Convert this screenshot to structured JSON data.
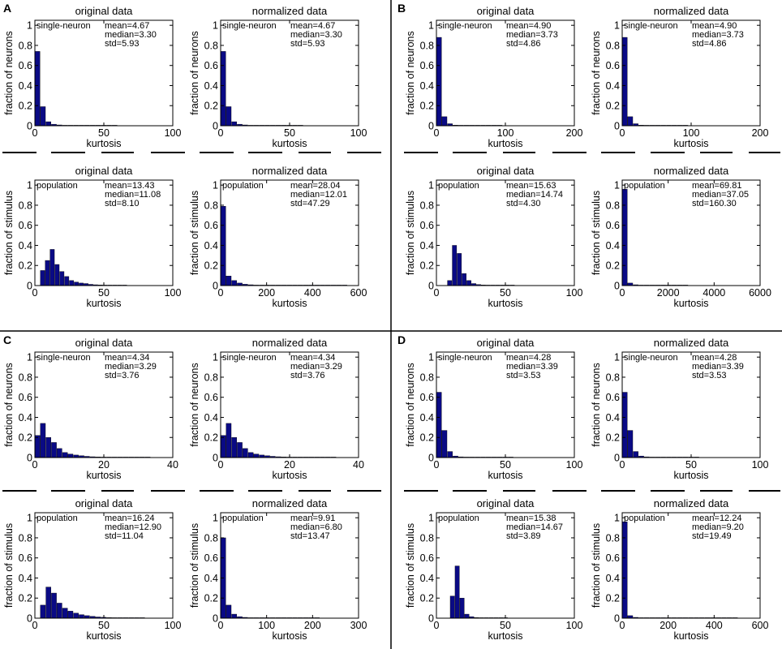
{
  "colors": {
    "bar": "#0a0a85",
    "axis": "#000000",
    "background": "#ffffff"
  },
  "panels": [
    {
      "letter": "A"
    },
    {
      "letter": "B"
    },
    {
      "letter": "C"
    },
    {
      "letter": "D"
    }
  ],
  "chart_data": [
    {
      "panel": "A",
      "type": "bar",
      "title": "original data",
      "xlabel": "kurtosis",
      "ylabel": "fraction of neurons",
      "legend": "single-neuron",
      "stats": [
        "mean=4.67",
        "median=3.30",
        "std=5.93"
      ],
      "xlim": [
        0,
        100
      ],
      "ylim": [
        0,
        1.05
      ],
      "xticks": [
        0,
        50,
        100
      ],
      "yticks": [
        0,
        0.2,
        0.4,
        0.6,
        0.8,
        1
      ],
      "bin_width": 4,
      "values": [
        0.74,
        0.19,
        0.04,
        0.015,
        0.008,
        0.004,
        0.003,
        0.002,
        0.002,
        0.001,
        0.001,
        0.001,
        0.001,
        0.001,
        0.001
      ]
    },
    {
      "panel": "A",
      "type": "bar",
      "title": "normalized data",
      "xlabel": "kurtosis",
      "ylabel": "fraction of neurons",
      "legend": "single-neuron",
      "stats": [
        "mean=4.67",
        "median=3.30",
        "std=5.93"
      ],
      "xlim": [
        0,
        100
      ],
      "ylim": [
        0,
        1.05
      ],
      "xticks": [
        0,
        50,
        100
      ],
      "yticks": [
        0,
        0.2,
        0.4,
        0.6,
        0.8,
        1
      ],
      "bin_width": 4,
      "values": [
        0.74,
        0.19,
        0.04,
        0.015,
        0.008,
        0.004,
        0.003,
        0.002,
        0.002,
        0.001,
        0.001,
        0.001,
        0.001,
        0.001,
        0.001
      ]
    },
    {
      "panel": "A",
      "type": "bar",
      "title": "original data",
      "xlabel": "kurtosis",
      "ylabel": "fraction of stimulus",
      "legend": "population",
      "stats": [
        "mean=13.43",
        "median=11.08",
        "std=8.10"
      ],
      "xlim": [
        0,
        100
      ],
      "ylim": [
        0,
        1.05
      ],
      "xticks": [
        0,
        50,
        100
      ],
      "yticks": [
        0,
        0.2,
        0.4,
        0.6,
        0.8,
        1
      ],
      "bin_width": 3.5,
      "bin_start": 4,
      "values": [
        0.15,
        0.25,
        0.36,
        0.21,
        0.14,
        0.09,
        0.05,
        0.035,
        0.025,
        0.02,
        0.012,
        0.008,
        0.006,
        0.004,
        0.003,
        0.002,
        0.002,
        0.001
      ]
    },
    {
      "panel": "A",
      "type": "bar",
      "title": "normalized data",
      "xlabel": "kurtosis",
      "ylabel": "fraction of stimulus",
      "legend": "population",
      "stats": [
        "mean=28.04",
        "median=12.01",
        "std=47.29"
      ],
      "xlim": [
        0,
        600
      ],
      "ylim": [
        0,
        1.05
      ],
      "xticks": [
        0,
        200,
        400,
        600
      ],
      "yticks": [
        0,
        0.2,
        0.4,
        0.6,
        0.8,
        1
      ],
      "bin_width": 24,
      "values": [
        0.79,
        0.095,
        0.05,
        0.025,
        0.013,
        0.008,
        0.005,
        0.003,
        0.002,
        0.002,
        0.001,
        0.001,
        0.001,
        0.001,
        0.001,
        0.001,
        0.001,
        0.001,
        0.001,
        0.001,
        0.001,
        0.001,
        0.001
      ]
    },
    {
      "panel": "B",
      "type": "bar",
      "title": "original data",
      "xlabel": "kurtosis",
      "ylabel": "fraction of neurons",
      "legend": "single-neuron",
      "stats": [
        "mean=4.90",
        "median=3.73",
        "std=4.86"
      ],
      "xlim": [
        0,
        200
      ],
      "ylim": [
        0,
        1.05
      ],
      "xticks": [
        0,
        100,
        200
      ],
      "yticks": [
        0,
        0.2,
        0.4,
        0.6,
        0.8,
        1
      ],
      "bin_width": 8,
      "values": [
        0.88,
        0.09,
        0.02,
        0.006,
        0.003,
        0.002,
        0.001,
        0.001,
        0.001,
        0.001,
        0.001,
        0.001
      ]
    },
    {
      "panel": "B",
      "type": "bar",
      "title": "normalized data",
      "xlabel": "kurtosis",
      "ylabel": "fraction of neurons",
      "legend": "single-neuron",
      "stats": [
        "mean=4.90",
        "median=3.73",
        "std=4.86"
      ],
      "xlim": [
        0,
        200
      ],
      "ylim": [
        0,
        1.05
      ],
      "xticks": [
        0,
        100,
        200
      ],
      "yticks": [
        0,
        0.2,
        0.4,
        0.6,
        0.8,
        1
      ],
      "bin_width": 8,
      "values": [
        0.88,
        0.09,
        0.02,
        0.006,
        0.003,
        0.002,
        0.001,
        0.001,
        0.001,
        0.001,
        0.001,
        0.001
      ]
    },
    {
      "panel": "B",
      "type": "bar",
      "title": "original data",
      "xlabel": "kurtosis",
      "ylabel": "fraction of stimulus",
      "legend": "population",
      "stats": [
        "mean=15.63",
        "median=14.74",
        "std=4.30"
      ],
      "xlim": [
        0,
        100
      ],
      "ylim": [
        0,
        1.05
      ],
      "xticks": [
        0,
        50,
        100
      ],
      "yticks": [
        0,
        0.2,
        0.4,
        0.6,
        0.8,
        1
      ],
      "bin_width": 3.5,
      "bin_start": 8,
      "values": [
        0.05,
        0.4,
        0.32,
        0.12,
        0.05,
        0.02,
        0.01,
        0.006,
        0.004,
        0.002,
        0.001,
        0.001,
        0.001,
        0.001
      ]
    },
    {
      "panel": "B",
      "type": "bar",
      "title": "normalized data",
      "xlabel": "kurtosis",
      "ylabel": "fraction of stimulus",
      "legend": "population",
      "stats": [
        "mean=69.81",
        "median=37.05",
        "std=160.30"
      ],
      "xlim": [
        0,
        6000
      ],
      "ylim": [
        0,
        1.05
      ],
      "xticks": [
        0,
        2000,
        4000,
        6000
      ],
      "yticks": [
        0,
        0.2,
        0.4,
        0.6,
        0.8,
        1
      ],
      "bin_width": 240,
      "values": [
        0.96,
        0.025,
        0.008,
        0.004,
        0.002,
        0.001,
        0.001,
        0.001,
        0.001,
        0.001,
        0.001,
        0.001
      ]
    },
    {
      "panel": "C",
      "type": "bar",
      "title": "original data",
      "xlabel": "kurtosis",
      "ylabel": "fraction of neurons",
      "legend": "single-neuron",
      "stats": [
        "mean=4.34",
        "median=3.29",
        "std=3.76"
      ],
      "xlim": [
        0,
        40
      ],
      "ylim": [
        0,
        1.05
      ],
      "xticks": [
        0,
        20,
        40
      ],
      "yticks": [
        0,
        0.2,
        0.4,
        0.6,
        0.8,
        1
      ],
      "bin_width": 1.6,
      "values": [
        0.22,
        0.34,
        0.2,
        0.15,
        0.09,
        0.05,
        0.035,
        0.025,
        0.018,
        0.012,
        0.008,
        0.006,
        0.004,
        0.003,
        0.002,
        0.002,
        0.001,
        0.001,
        0.001,
        0.001,
        0.001
      ]
    },
    {
      "panel": "C",
      "type": "bar",
      "title": "normalized data",
      "xlabel": "kurtosis",
      "ylabel": "fraction of neurons",
      "legend": "single-neuron",
      "stats": [
        "mean=4.34",
        "median=3.29",
        "std=3.76"
      ],
      "xlim": [
        0,
        40
      ],
      "ylim": [
        0,
        1.05
      ],
      "xticks": [
        0,
        20,
        40
      ],
      "yticks": [
        0,
        0.2,
        0.4,
        0.6,
        0.8,
        1
      ],
      "bin_width": 1.6,
      "values": [
        0.22,
        0.34,
        0.2,
        0.15,
        0.09,
        0.05,
        0.035,
        0.025,
        0.018,
        0.012,
        0.008,
        0.006,
        0.004,
        0.003,
        0.002,
        0.002,
        0.001,
        0.001,
        0.001,
        0.001,
        0.001
      ]
    },
    {
      "panel": "C",
      "type": "bar",
      "title": "original data",
      "xlabel": "kurtosis",
      "ylabel": "fraction of stimulus",
      "legend": "population",
      "stats": [
        "mean=16.24",
        "median=12.90",
        "std=11.04"
      ],
      "xlim": [
        0,
        100
      ],
      "ylim": [
        0,
        1.05
      ],
      "xticks": [
        0,
        50,
        100
      ],
      "yticks": [
        0,
        0.2,
        0.4,
        0.6,
        0.8,
        1
      ],
      "bin_width": 4,
      "bin_start": 4,
      "values": [
        0.13,
        0.31,
        0.25,
        0.15,
        0.1,
        0.07,
        0.05,
        0.035,
        0.025,
        0.018,
        0.012,
        0.009,
        0.006,
        0.004,
        0.003,
        0.002,
        0.002,
        0.001,
        0.001
      ]
    },
    {
      "panel": "C",
      "type": "bar",
      "title": "normalized data",
      "xlabel": "kurtosis",
      "ylabel": "fraction of stimulus",
      "legend": "population",
      "stats": [
        "mean=9.91",
        "median=6.80",
        "std=13.47"
      ],
      "xlim": [
        0,
        300
      ],
      "ylim": [
        0,
        1.05
      ],
      "xticks": [
        0,
        100,
        200,
        300
      ],
      "yticks": [
        0,
        0.2,
        0.4,
        0.6,
        0.8,
        1
      ],
      "bin_width": 12,
      "values": [
        0.8,
        0.13,
        0.04,
        0.015,
        0.008,
        0.004,
        0.003,
        0.002,
        0.001,
        0.001,
        0.001,
        0.001,
        0.001,
        0.001,
        0.001,
        0.001,
        0.001,
        0.001
      ]
    },
    {
      "panel": "D",
      "type": "bar",
      "title": "original data",
      "xlabel": "kurtosis",
      "ylabel": "fraction of neurons",
      "legend": "single-neuron",
      "stats": [
        "mean=4.28",
        "median=3.39",
        "std=3.53"
      ],
      "xlim": [
        0,
        100
      ],
      "ylim": [
        0,
        1.05
      ],
      "xticks": [
        0,
        50,
        100
      ],
      "yticks": [
        0,
        0.2,
        0.4,
        0.6,
        0.8,
        1
      ],
      "bin_width": 4,
      "values": [
        0.65,
        0.27,
        0.06,
        0.015,
        0.007,
        0.003,
        0.002,
        0.001,
        0.001,
        0.001,
        0.001,
        0.001,
        0.001,
        0.001
      ]
    },
    {
      "panel": "D",
      "type": "bar",
      "title": "normalized data",
      "xlabel": "kurtosis",
      "ylabel": "fraction of neurons",
      "legend": "single-neuron",
      "stats": [
        "mean=4.28",
        "median=3.39",
        "std=3.53"
      ],
      "xlim": [
        0,
        100
      ],
      "ylim": [
        0,
        1.05
      ],
      "xticks": [
        0,
        50,
        100
      ],
      "yticks": [
        0,
        0.2,
        0.4,
        0.6,
        0.8,
        1
      ],
      "bin_width": 4,
      "values": [
        0.65,
        0.27,
        0.06,
        0.015,
        0.007,
        0.003,
        0.002,
        0.001,
        0.001,
        0.001,
        0.001,
        0.001,
        0.001,
        0.001
      ]
    },
    {
      "panel": "D",
      "type": "bar",
      "title": "original data",
      "xlabel": "kurtosis",
      "ylabel": "fraction of stimulus",
      "legend": "population",
      "stats": [
        "mean=15.38",
        "median=14.67",
        "std=3.89"
      ],
      "xlim": [
        0,
        100
      ],
      "ylim": [
        0,
        1.05
      ],
      "xticks": [
        0,
        50,
        100
      ],
      "yticks": [
        0,
        0.2,
        0.4,
        0.6,
        0.8,
        1
      ],
      "bin_width": 3.5,
      "bin_start": 10,
      "values": [
        0.22,
        0.52,
        0.2,
        0.04,
        0.015,
        0.006,
        0.003,
        0.002,
        0.001,
        0.001,
        0.001,
        0.001
      ]
    },
    {
      "panel": "D",
      "type": "bar",
      "title": "normalized data",
      "xlabel": "kurtosis",
      "ylabel": "fraction of stimulus",
      "legend": "population",
      "stats": [
        "mean=12.24",
        "median=9.20",
        "std=19.49"
      ],
      "xlim": [
        0,
        600
      ],
      "ylim": [
        0,
        1.05
      ],
      "xticks": [
        0,
        200,
        400,
        600
      ],
      "yticks": [
        0,
        0.2,
        0.4,
        0.6,
        0.8,
        1
      ],
      "bin_width": 24,
      "values": [
        0.96,
        0.025,
        0.008,
        0.003,
        0.002,
        0.001,
        0.001,
        0.001,
        0.001,
        0.001,
        0.001,
        0.001,
        0.001,
        0.001,
        0.001,
        0.001,
        0.001,
        0.001,
        0.001,
        0.001,
        0.001
      ]
    }
  ]
}
